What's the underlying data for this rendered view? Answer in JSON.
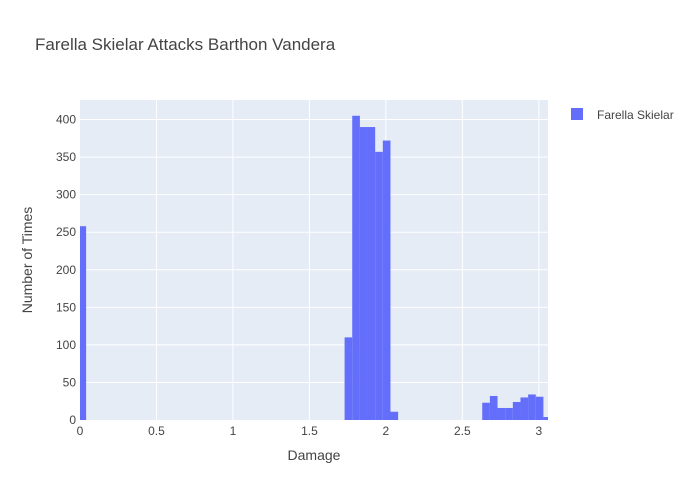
{
  "chart_data": {
    "type": "bar",
    "title": "Farella Skielar Attacks Barthon Vandera",
    "xlabel": "Damage",
    "ylabel": "Number of Times",
    "xlim": [
      0,
      3.06
    ],
    "ylim": [
      0,
      426
    ],
    "x_ticks": [
      0,
      0.5,
      1,
      1.5,
      2,
      2.5,
      3
    ],
    "x_tick_labels": [
      "0",
      "0.5",
      "1",
      "1.5",
      "2",
      "2.5",
      "3"
    ],
    "y_ticks": [
      0,
      50,
      100,
      150,
      200,
      250,
      300,
      350,
      400
    ],
    "y_tick_labels": [
      "0",
      "50",
      "100",
      "150",
      "200",
      "250",
      "300",
      "350",
      "400"
    ],
    "grid": true,
    "legend_position": "top-right",
    "series": [
      {
        "name": "Farella Skielar",
        "color": "#636efa",
        "bin_width": 0.05,
        "bins": [
          {
            "x0": -0.01,
            "x1": 0.04,
            "value": 258
          },
          {
            "x0": 1.73,
            "x1": 1.78,
            "value": 110
          },
          {
            "x0": 1.78,
            "x1": 1.83,
            "value": 405
          },
          {
            "x0": 1.83,
            "x1": 1.88,
            "value": 390
          },
          {
            "x0": 1.88,
            "x1": 1.93,
            "value": 390
          },
          {
            "x0": 1.93,
            "x1": 1.98,
            "value": 357
          },
          {
            "x0": 1.98,
            "x1": 2.03,
            "value": 372
          },
          {
            "x0": 2.03,
            "x1": 2.08,
            "value": 11
          },
          {
            "x0": 2.63,
            "x1": 2.68,
            "value": 23
          },
          {
            "x0": 2.68,
            "x1": 2.73,
            "value": 32
          },
          {
            "x0": 2.73,
            "x1": 2.78,
            "value": 16
          },
          {
            "x0": 2.78,
            "x1": 2.83,
            "value": 16
          },
          {
            "x0": 2.83,
            "x1": 2.88,
            "value": 24
          },
          {
            "x0": 2.88,
            "x1": 2.93,
            "value": 30
          },
          {
            "x0": 2.93,
            "x1": 2.98,
            "value": 34
          },
          {
            "x0": 2.98,
            "x1": 3.03,
            "value": 31
          },
          {
            "x0": 3.03,
            "x1": 3.08,
            "value": 4
          }
        ]
      }
    ]
  }
}
